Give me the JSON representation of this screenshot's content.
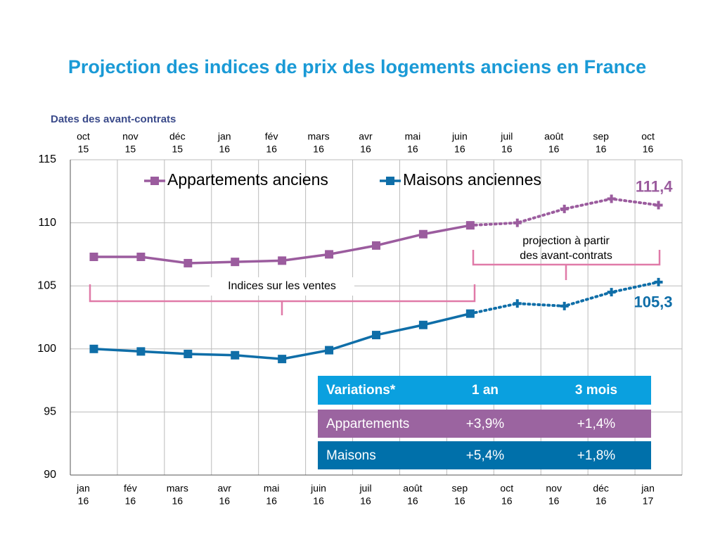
{
  "chart_data": {
    "type": "line",
    "title": "Projection des indices de prix des logements anciens en France",
    "top_axis_label": "Dates des avant-contrats",
    "top_categories": [
      [
        "oct",
        "15"
      ],
      [
        "nov",
        "15"
      ],
      [
        "déc",
        "15"
      ],
      [
        "jan",
        "16"
      ],
      [
        "fév",
        "16"
      ],
      [
        "mars",
        "16"
      ],
      [
        "avr",
        "16"
      ],
      [
        "mai",
        "16"
      ],
      [
        "juin",
        "16"
      ],
      [
        "juil",
        "16"
      ],
      [
        "août",
        "16"
      ],
      [
        "sep",
        "16"
      ],
      [
        "oct",
        "16"
      ]
    ],
    "categories": [
      [
        "jan",
        "16"
      ],
      [
        "fév",
        "16"
      ],
      [
        "mars",
        "16"
      ],
      [
        "avr",
        "16"
      ],
      [
        "mai",
        "16"
      ],
      [
        "juin",
        "16"
      ],
      [
        "juil",
        "16"
      ],
      [
        "août",
        "16"
      ],
      [
        "sep",
        "16"
      ],
      [
        "oct",
        "16"
      ],
      [
        "nov",
        "16"
      ],
      [
        "déc",
        "16"
      ],
      [
        "jan",
        "17"
      ]
    ],
    "series": [
      {
        "name": "Appartements anciens",
        "color": "#9b5c9e",
        "values": [
          107.3,
          107.3,
          106.8,
          106.9,
          107.0,
          107.5,
          108.2,
          109.1,
          109.8,
          110.0,
          111.1,
          111.9,
          111.4
        ],
        "value_labels": [
          null,
          null,
          null,
          null,
          null,
          null,
          null,
          null,
          null,
          null,
          null,
          null,
          "111,4"
        ]
      },
      {
        "name": "Maisons anciennes",
        "color": "#0f6ea8",
        "values": [
          100.0,
          99.8,
          99.6,
          99.5,
          99.2,
          99.9,
          101.1,
          101.9,
          102.8,
          103.6,
          103.4,
          104.5,
          105.3
        ],
        "value_labels": [
          null,
          null,
          null,
          null,
          null,
          null,
          null,
          null,
          null,
          null,
          null,
          null,
          "105,3"
        ]
      }
    ],
    "dotted_from_index": 8,
    "ylim": [
      90,
      115
    ],
    "yticks": [
      90,
      95,
      100,
      105,
      110,
      115
    ],
    "grid": true,
    "annotations": [
      [
        "Indices sur les ventes"
      ],
      [
        "projection à partir",
        "des avant-contrats"
      ]
    ],
    "table": {
      "header": [
        "Variations*",
        "1 an",
        "3 mois"
      ],
      "header_color": "#0aa0df",
      "rows": [
        {
          "cells": [
            "Appartements",
            "+3,9%",
            "+1,4%"
          ],
          "color": "#9b64a0"
        },
        {
          "cells": [
            "Maisons",
            "+5,4%",
            "+1,8%"
          ],
          "color": "#0070aa"
        }
      ]
    }
  }
}
